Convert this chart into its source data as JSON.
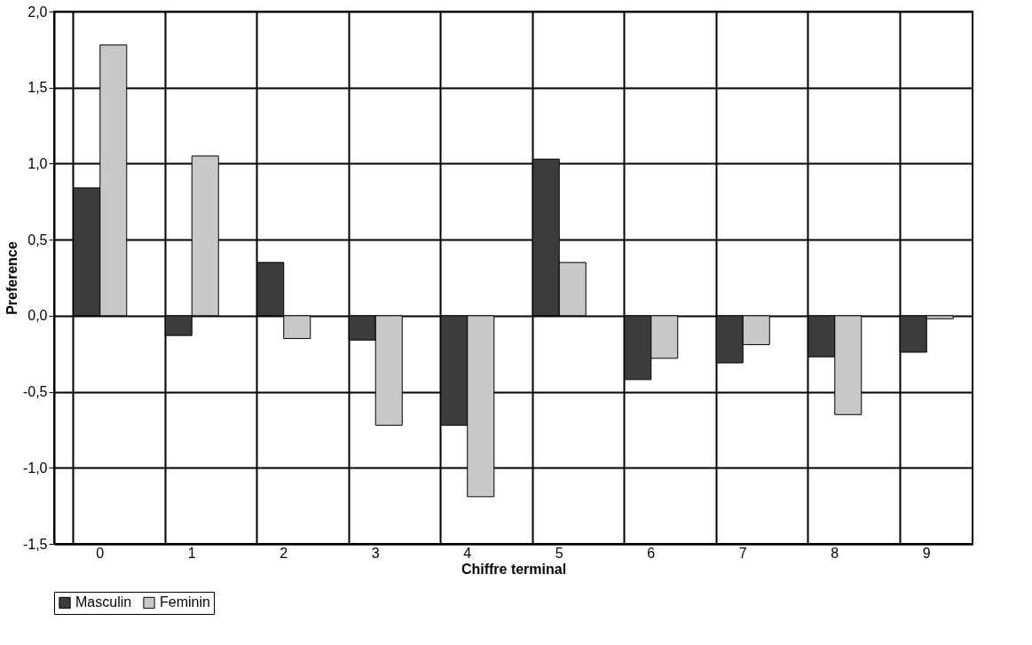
{
  "chart_data": {
    "type": "bar",
    "xlabel": "Chiffre terminal",
    "ylabel": "Preference",
    "categories": [
      "0",
      "1",
      "2",
      "3",
      "4",
      "5",
      "6",
      "7",
      "8",
      "9"
    ],
    "series": [
      {
        "name": "Masculin",
        "color": "#3c3c3c",
        "values": [
          0.84,
          -0.13,
          0.35,
          -0.16,
          -0.72,
          1.03,
          -0.42,
          -0.31,
          -0.27,
          -0.24
        ]
      },
      {
        "name": "Feminin",
        "color": "#c8c8c8",
        "values": [
          1.78,
          1.05,
          -0.15,
          -0.72,
          -1.19,
          0.35,
          -0.28,
          -0.19,
          -0.65,
          -0.02
        ]
      }
    ],
    "ylim": [
      -1.5,
      2.0
    ],
    "yticks": [
      {
        "value": -1.5,
        "label": "-1,5"
      },
      {
        "value": -1.0,
        "label": "-1,0"
      },
      {
        "value": -0.5,
        "label": "-0,5"
      },
      {
        "value": 0.0,
        "label": "0,0"
      },
      {
        "value": 0.5,
        "label": "0,5"
      },
      {
        "value": 1.0,
        "label": "1,0"
      },
      {
        "value": 1.5,
        "label": "1,5"
      },
      {
        "value": 2.0,
        "label": "2,0"
      }
    ],
    "grid": true,
    "legend": "bottom"
  }
}
